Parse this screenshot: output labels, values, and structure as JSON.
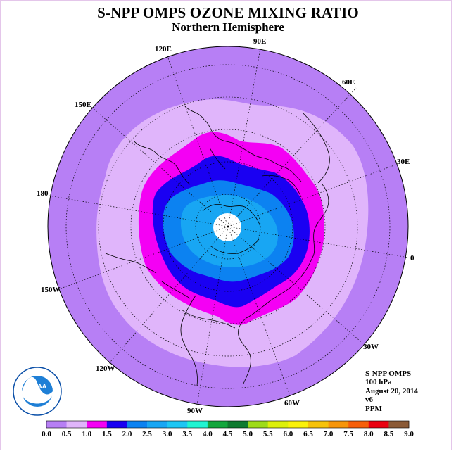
{
  "title": "S-NPP OMPS OZONE MIXING RATIO",
  "subtitle": "Northern Hemisphere",
  "longitude_labels": [
    "90E",
    "60E",
    "30E",
    "0",
    "30W",
    "60W",
    "90W",
    "120W",
    "150W",
    "180",
    "150E",
    "120E"
  ],
  "info": {
    "instrument": "S-NPP OMPS",
    "level": "100 hPa",
    "date": "August 20, 2014",
    "version": "v6",
    "units": "PPM"
  },
  "logo": {
    "center_text": "NOAA",
    "ring_text": "NATIONAL OCEANIC AND ATMOSPHERIC ADMINISTRATION U.S. DEPARTMENT OF COMMERCE"
  },
  "colorbar": {
    "ticks": [
      "0.0",
      "0.5",
      "1.0",
      "1.5",
      "2.0",
      "2.5",
      "3.0",
      "3.5",
      "4.0",
      "4.5",
      "5.0",
      "5.5",
      "6.0",
      "6.5",
      "7.0",
      "7.5",
      "8.0",
      "8.5",
      "9.0"
    ],
    "colors": [
      "#b77ff5",
      "#e0b5fb",
      "#f400f4",
      "#1a00f2",
      "#0c82f1",
      "#18a6f3",
      "#1ec6f3",
      "#20f5d2",
      "#13a63c",
      "#0f7a2f",
      "#9edb18",
      "#ddf00a",
      "#faf20a",
      "#f6c20a",
      "#f6950a",
      "#f65f0a",
      "#ea0010",
      "#8b5a36"
    ]
  },
  "map_colors": {
    "band_0_0_to_0_5": "#b77ff5",
    "band_0_5_to_1_0": "#e0b5fb",
    "band_1_0_to_1_5": "#f400f4",
    "band_1_5_to_2_0": "#1a00f2",
    "band_2_0_to_2_5": "#0c82f1",
    "band_2_5_to_3_0": "#18a6f3",
    "no_data": "#ffffff",
    "coastline": "#000000"
  }
}
